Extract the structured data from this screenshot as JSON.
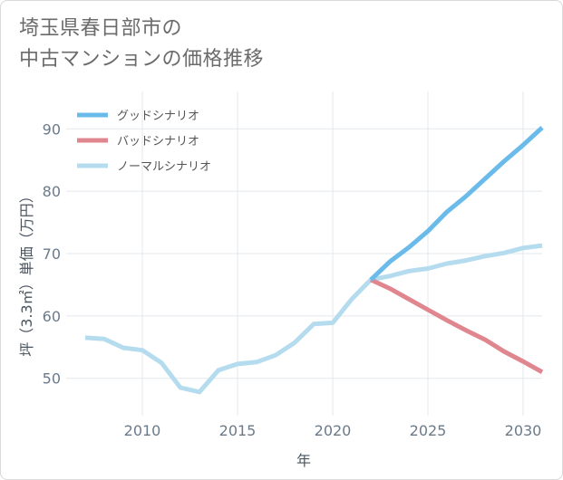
{
  "chart_data": {
    "type": "line",
    "title_lines": [
      "埼玉県春日部市の",
      "中古マンションの価格推移"
    ],
    "xlabel": "年",
    "ylabel": "坪（3.3㎡）単価（万円）",
    "xlim": [
      2006,
      2031
    ],
    "ylim": [
      44,
      96
    ],
    "xticks": [
      2010,
      2015,
      2020,
      2025,
      2030
    ],
    "yticks": [
      50,
      60,
      70,
      80,
      90
    ],
    "grid": true,
    "legend_position": "top-left",
    "series": [
      {
        "name": "グッドシナリオ",
        "color": "#6bbbea",
        "x": [
          2022,
          2023,
          2024,
          2025,
          2026,
          2027,
          2028,
          2029,
          2030,
          2031
        ],
        "y": [
          65.8,
          68.7,
          71.0,
          73.6,
          76.7,
          79.2,
          82.0,
          84.8,
          87.4,
          90.2
        ]
      },
      {
        "name": "バッドシナリオ",
        "color": "#e0868f",
        "x": [
          2022,
          2023,
          2024,
          2025,
          2026,
          2027,
          2028,
          2029,
          2030,
          2031
        ],
        "y": [
          65.8,
          64.4,
          62.7,
          61.0,
          59.3,
          57.7,
          56.2,
          54.3,
          52.7,
          51.0
        ]
      },
      {
        "name": "ノーマルシナリオ",
        "color": "#b5dcee",
        "x": [
          2007,
          2008,
          2009,
          2010,
          2011,
          2012,
          2013,
          2014,
          2015,
          2016,
          2017,
          2018,
          2019,
          2020,
          2021,
          2022,
          2023,
          2024,
          2025,
          2026,
          2027,
          2028,
          2029,
          2030,
          2031
        ],
        "y": [
          56.5,
          56.3,
          54.9,
          54.5,
          52.5,
          48.5,
          47.8,
          51.3,
          52.3,
          52.6,
          53.7,
          55.7,
          58.7,
          58.9,
          62.7,
          65.8,
          66.4,
          67.2,
          67.6,
          68.4,
          68.9,
          69.6,
          70.1,
          70.9,
          71.3
        ]
      }
    ]
  }
}
